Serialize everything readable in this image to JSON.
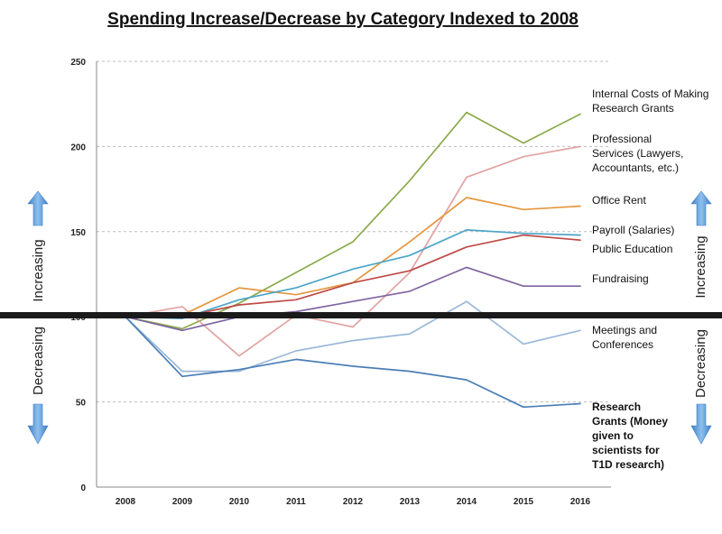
{
  "chart_data": {
    "type": "line",
    "title": "Spending Increase/Decrease by Category Indexed to 2008",
    "x": [
      "2008",
      "2009",
      "2010",
      "2011",
      "2012",
      "2013",
      "2014",
      "2015",
      "2016"
    ],
    "ylim": [
      0,
      250
    ],
    "yticks": [
      "0",
      "50",
      "100",
      "150",
      "200",
      "250"
    ],
    "grid": true,
    "baseline": 100,
    "side_labels": {
      "increasing": "Increasing",
      "decreasing": "Decreasing"
    },
    "series": [
      {
        "name": "Internal Costs of Making Research Grants",
        "color": "#8aaa4c",
        "label_lines": [
          "Internal Costs of Making",
          "Research Grants"
        ],
        "bold": false,
        "values": [
          100,
          93,
          108,
          126,
          144,
          180,
          220,
          202,
          219
        ]
      },
      {
        "name": "Professional Services (Lawyers, Accountants, etc.)",
        "color": "#e1a3a1",
        "label_lines": [
          "Professional",
          "Services (Lawyers,",
          "Accountants, etc.)"
        ],
        "bold": false,
        "values": [
          100,
          106,
          77,
          101,
          94,
          126,
          182,
          194,
          200
        ]
      },
      {
        "name": "Office Rent",
        "color": "#e6963f",
        "label_lines": [
          "Office Rent"
        ],
        "bold": false,
        "values": [
          100,
          101,
          117,
          113,
          120,
          144,
          170,
          163,
          165
        ]
      },
      {
        "name": "Payroll (Salaries)",
        "color": "#4ba5c8",
        "label_lines": [
          "Payroll (Salaries)"
        ],
        "bold": false,
        "values": [
          100,
          99,
          110,
          117,
          128,
          136,
          151,
          149,
          148
        ]
      },
      {
        "name": "Public Education",
        "color": "#bd4a47",
        "label_lines": [
          "Public Education"
        ],
        "bold": false,
        "values": [
          100,
          100,
          107,
          110,
          120,
          127,
          141,
          148,
          145
        ]
      },
      {
        "name": "Fundraising",
        "color": "#7e64a0",
        "label_lines": [
          "Fundraising"
        ],
        "bold": false,
        "values": [
          100,
          92,
          100,
          103,
          109,
          115,
          129,
          118,
          118
        ]
      },
      {
        "name": "Meetings and Conferences",
        "color": "#9ab8d8",
        "label_lines": [
          "Meetings and",
          "Conferences"
        ],
        "bold": false,
        "values": [
          100,
          68,
          68,
          80,
          86,
          90,
          109,
          84,
          92
        ]
      },
      {
        "name": "Research Grants (Money given to scientists for T1D research)",
        "color": "#4a7eb5",
        "label_lines": [
          "Research",
          "Grants (Money",
          "given to",
          "scientists for",
          "T1D research)"
        ],
        "bold": true,
        "values": [
          100,
          65,
          69,
          75,
          71,
          68,
          63,
          47,
          49
        ]
      }
    ]
  }
}
